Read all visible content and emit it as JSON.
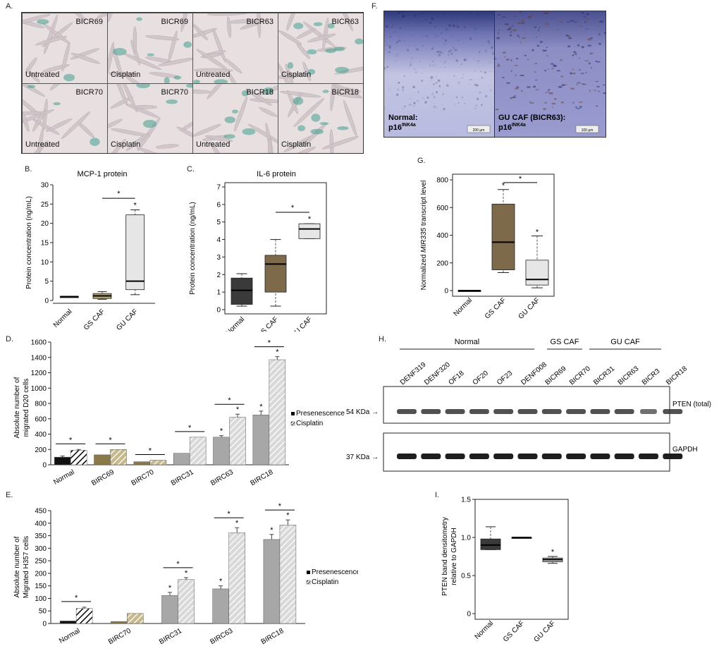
{
  "panels": {
    "A": "A.",
    "B": "B.",
    "C": "C.",
    "D": "D.",
    "E": "E.",
    "F": "F.",
    "G": "G.",
    "H": "H.",
    "I": "I."
  },
  "panelA": {
    "cells": [
      {
        "name": "BICR69",
        "treat": "Untreated",
        "stain": 0.15
      },
      {
        "name": "BICR69",
        "treat": "Cisplatin",
        "stain": 0.5
      },
      {
        "name": "BICR63",
        "treat": "Untreated",
        "stain": 0.2
      },
      {
        "name": "BICR63",
        "treat": "Cisplatin",
        "stain": 0.8
      },
      {
        "name": "BICR70",
        "treat": "Untreated",
        "stain": 0.25
      },
      {
        "name": "BICR70",
        "treat": "Cisplatin",
        "stain": 0.35
      },
      {
        "name": "BICR18",
        "treat": "Untreated",
        "stain": 0.5
      },
      {
        "name": "BICR18",
        "treat": "Cisplatin",
        "stain": 0.6
      }
    ]
  },
  "panelF": {
    "left_label_1": "Normal:",
    "left_label_2": "p16",
    "left_sup": "INK4a",
    "right_label_1": "GU CAF (BICR63):",
    "right_label_2": "p16",
    "right_sup": "INK4a",
    "left_scale": "200 µm",
    "right_scale": "100 µm"
  },
  "chart_data": [
    {
      "id": "B",
      "type": "box",
      "title": "MCP-1 protein",
      "ylabel": "Protein concentration (ng/mL)",
      "ylim": [
        0,
        30
      ],
      "yticks": [
        0,
        5,
        10,
        15,
        20,
        25,
        30
      ],
      "categories": [
        "Normal",
        "GS CAF",
        "GU CAF"
      ],
      "boxes": [
        {
          "min": 1,
          "q1": 1,
          "median": 1,
          "q3": 1,
          "max": 1,
          "color": "#222222"
        },
        {
          "min": 0.3,
          "q1": 0.5,
          "median": 1.2,
          "q3": 1.8,
          "max": 2.3,
          "color": "#b3a370"
        },
        {
          "min": 1.5,
          "q1": 2.8,
          "median": 5,
          "q3": 22.2,
          "max": 23.5,
          "color": "#e6e6e6"
        }
      ],
      "stars": [
        "*"
      ],
      "bracket": {
        "from": 1,
        "to": 2,
        "label": "*"
      }
    },
    {
      "id": "C",
      "type": "box",
      "title": "IL-6 protein",
      "ylabel": "Protein concentration (ng/mL)",
      "ylim": [
        0,
        7
      ],
      "yticks": [
        0,
        1,
        2,
        3,
        4,
        5,
        6,
        7
      ],
      "categories": [
        "Normal",
        "GS CAF",
        "GU CAF"
      ],
      "boxes": [
        {
          "min": 0.2,
          "q1": 0.3,
          "median": 1.1,
          "q3": 1.8,
          "max": 2.05,
          "color": "#3a3a3a"
        },
        {
          "min": 0.2,
          "q1": 1,
          "median": 2.6,
          "q3": 3.1,
          "max": 4,
          "color": "#7d6a4a"
        },
        {
          "min": 4.05,
          "q1": 4.05,
          "median": 4.6,
          "q3": 4.9,
          "max": 4.9,
          "color": "#e6e6e6"
        }
      ],
      "stars": [
        "*"
      ],
      "bracket": {
        "from": 1,
        "to": 2,
        "label": "*"
      }
    },
    {
      "id": "G",
      "type": "box",
      "ylabel_pre": "Normalized ",
      "ylabel_em": "MIR335",
      "ylabel_post": " transcript level",
      "ylim": [
        0,
        800
      ],
      "yticks": [
        0,
        200,
        400,
        600,
        800
      ],
      "categories": [
        "Normal",
        "GS CAF",
        "GU CAF"
      ],
      "boxes": [
        {
          "min": 0,
          "q1": 0,
          "median": 0,
          "q3": 0,
          "max": 0,
          "color": "#222222"
        },
        {
          "min": 130,
          "q1": 150,
          "median": 350,
          "q3": 625,
          "max": 730,
          "color": "#7d6a4a"
        },
        {
          "min": 20,
          "q1": 40,
          "median": 80,
          "q3": 220,
          "max": 395,
          "color": "#e6e6e6"
        }
      ],
      "stars": [
        "*",
        "*"
      ],
      "bracket": {
        "from": 1,
        "to": 2,
        "label": "*"
      }
    },
    {
      "id": "D",
      "type": "bar",
      "ylabel_1": "Absolute number of",
      "ylabel_2": "migrated D20 cells",
      "ylim": [
        0,
        1600
      ],
      "yticks": [
        0,
        200,
        400,
        600,
        800,
        1000,
        1200,
        1400,
        1600
      ],
      "categories": [
        "Normal",
        "BIRC69",
        "BIRC70",
        "BIRC31",
        "BIRC63",
        "BIRC18"
      ],
      "series": [
        {
          "name": "Presenescence",
          "values": [
            100,
            130,
            40,
            150,
            360,
            650
          ]
        },
        {
          "name": "Cisplatin",
          "values": [
            190,
            200,
            60,
            360,
            620,
            1370
          ]
        }
      ],
      "colors": [
        [
          "#111111",
          "#111111"
        ],
        [
          "#8a7a4a",
          "#c5b98d"
        ],
        [
          "#8a7a4a",
          "#c5b98d"
        ],
        [
          "#a7a7a7",
          "#d9d9d9"
        ],
        [
          "#a7a7a7",
          "#d9d9d9"
        ],
        [
          "#a7a7a7",
          "#d9d9d9"
        ]
      ],
      "errors": [
        [
          15,
          10
        ],
        [
          0,
          0
        ],
        [
          0,
          0
        ],
        [
          0,
          0
        ],
        [
          20,
          40
        ],
        [
          50,
          40
        ]
      ],
      "stars_pre": [
        false,
        false,
        false,
        false,
        true,
        true
      ],
      "stars_cis": [
        false,
        false,
        false,
        false,
        true,
        true
      ],
      "bracket_stars": [
        true,
        true,
        true,
        true,
        true,
        true
      ]
    },
    {
      "id": "E",
      "type": "bar",
      "ylabel_1": "Absolute number of",
      "ylabel_2": "Migrated H357 cells",
      "ylim": [
        0,
        450
      ],
      "yticks": [
        0,
        50,
        100,
        150,
        200,
        250,
        300,
        350,
        400,
        450
      ],
      "categories": [
        "Normal",
        "BIRC70",
        "BIRC31",
        "BIRC63",
        "BIRC18"
      ],
      "series": [
        {
          "name": "Presenescence",
          "values": [
            10,
            8,
            112,
            138,
            335
          ]
        },
        {
          "name": "Cisplatin",
          "values": [
            60,
            40,
            175,
            362,
            393
          ]
        }
      ],
      "colors": [
        [
          "#111111",
          "#111111"
        ],
        [
          "#8a7a4a",
          "#c5b98d"
        ],
        [
          "#a7a7a7",
          "#d9d9d9"
        ],
        [
          "#a7a7a7",
          "#d9d9d9"
        ],
        [
          "#a7a7a7",
          "#d9d9d9"
        ]
      ],
      "errors": [
        [
          0,
          5
        ],
        [
          0,
          0
        ],
        [
          12,
          8
        ],
        [
          12,
          20
        ],
        [
          20,
          20
        ]
      ],
      "stars_pre": [
        false,
        false,
        true,
        true,
        true
      ],
      "stars_cis": [
        false,
        false,
        true,
        true,
        true
      ],
      "bracket_stars": [
        true,
        false,
        true,
        true,
        true
      ]
    },
    {
      "id": "I",
      "type": "box",
      "ylabel_1": "PTEN band densitometry",
      "ylabel_2": "relative to GAPDH",
      "ylim": [
        0,
        1.5
      ],
      "yticks": [
        "0",
        "0.5",
        "1.0",
        "1.5"
      ],
      "ytickvals": [
        0,
        0.5,
        1.0,
        1.5
      ],
      "categories": [
        "Normal",
        "GS CAF",
        "GU CAF"
      ],
      "boxes": [
        {
          "min": 0.84,
          "q1": 0.84,
          "median": 0.9,
          "q3": 0.98,
          "max": 1.14,
          "color": "#3a3a3a"
        },
        {
          "min": 1.0,
          "q1": 1.0,
          "median": 1.0,
          "q3": 1.0,
          "max": 1.0,
          "color": "#222222"
        },
        {
          "min": 0.66,
          "q1": 0.68,
          "median": 0.71,
          "q3": 0.73,
          "max": 0.75,
          "color": "#bdbdbd"
        }
      ],
      "stars": [
        "*"
      ]
    }
  ],
  "panelH": {
    "groups": [
      {
        "label": "Normal"
      },
      {
        "label": "GS CAF"
      },
      {
        "label": "GU CAF"
      }
    ],
    "lanes": [
      "DENF319",
      "DENF320",
      "OF18",
      "OF20",
      "OF23",
      "DENF008",
      "BICR69",
      "BICR70",
      "BICR31",
      "BICR63",
      "BICR3",
      "BICR18"
    ],
    "top_marker": "54 KDa",
    "bottom_marker": "37 KDa",
    "top_label": "PTEN (total)",
    "bottom_label": "GAPDH"
  },
  "legend": {
    "pre": "Presenescence",
    "cis": "Cisplatin"
  }
}
